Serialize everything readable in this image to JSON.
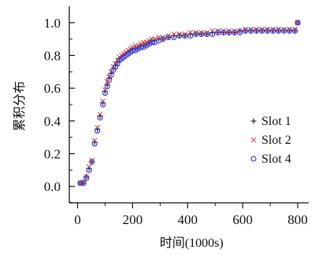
{
  "chart_data": {
    "type": "scatter",
    "xlabel": "时间(1000s)",
    "ylabel": "累积分布",
    "xlim": [
      -30,
      840
    ],
    "ylim": [
      -0.1,
      1.1
    ],
    "xticks": [
      0,
      200,
      400,
      600,
      800
    ],
    "yticks": [
      0.0,
      0.2,
      0.4,
      0.6,
      0.8,
      1.0
    ],
    "xtick_labels": [
      "0",
      "200",
      "400",
      "600",
      "800"
    ],
    "ytick_labels": [
      "0.0",
      "0.2",
      "0.4",
      "0.6",
      "0.8",
      "1.0"
    ],
    "legend_position": "right",
    "grid": false,
    "series": [
      {
        "name": "Slot 1",
        "marker": "plus",
        "color": "#222222",
        "points": [
          [
            10,
            0.02
          ],
          [
            22,
            0.02
          ],
          [
            32,
            0.06
          ],
          [
            42,
            0.11
          ],
          [
            52,
            0.15
          ],
          [
            62,
            0.27
          ],
          [
            72,
            0.35
          ],
          [
            82,
            0.43
          ],
          [
            92,
            0.51
          ],
          [
            100,
            0.58
          ],
          [
            108,
            0.62
          ],
          [
            115,
            0.66
          ],
          [
            122,
            0.69
          ],
          [
            130,
            0.72
          ],
          [
            138,
            0.74
          ],
          [
            145,
            0.76
          ],
          [
            152,
            0.78
          ],
          [
            160,
            0.79
          ],
          [
            168,
            0.8
          ],
          [
            176,
            0.81
          ],
          [
            184,
            0.82
          ],
          [
            192,
            0.83
          ],
          [
            200,
            0.84
          ],
          [
            210,
            0.84
          ],
          [
            220,
            0.85
          ],
          [
            230,
            0.86
          ],
          [
            240,
            0.86
          ],
          [
            250,
            0.87
          ],
          [
            260,
            0.88
          ],
          [
            270,
            0.89
          ],
          [
            280,
            0.89
          ],
          [
            295,
            0.9
          ],
          [
            310,
            0.9
          ],
          [
            330,
            0.91
          ],
          [
            350,
            0.92
          ],
          [
            370,
            0.92
          ],
          [
            390,
            0.92
          ],
          [
            410,
            0.93
          ],
          [
            430,
            0.93
          ],
          [
            450,
            0.93
          ],
          [
            470,
            0.93
          ],
          [
            490,
            0.94
          ],
          [
            510,
            0.94
          ],
          [
            530,
            0.94
          ],
          [
            550,
            0.94
          ],
          [
            570,
            0.94
          ],
          [
            590,
            0.95
          ],
          [
            610,
            0.95
          ],
          [
            630,
            0.95
          ],
          [
            650,
            0.95
          ],
          [
            670,
            0.95
          ],
          [
            690,
            0.95
          ],
          [
            710,
            0.95
          ],
          [
            730,
            0.95
          ],
          [
            750,
            0.95
          ],
          [
            770,
            0.95
          ],
          [
            790,
            0.95
          ],
          [
            800,
            1.0
          ]
        ]
      },
      {
        "name": "Slot 2",
        "marker": "x",
        "color": "#e0554f",
        "points": [
          [
            10,
            0.02
          ],
          [
            22,
            0.03
          ],
          [
            32,
            0.06
          ],
          [
            42,
            0.12
          ],
          [
            52,
            0.16
          ],
          [
            62,
            0.28
          ],
          [
            72,
            0.36
          ],
          [
            82,
            0.44
          ],
          [
            92,
            0.52
          ],
          [
            100,
            0.59
          ],
          [
            108,
            0.64
          ],
          [
            115,
            0.67
          ],
          [
            122,
            0.7
          ],
          [
            130,
            0.73
          ],
          [
            138,
            0.75
          ],
          [
            145,
            0.77
          ],
          [
            152,
            0.79
          ],
          [
            160,
            0.8
          ],
          [
            168,
            0.81
          ],
          [
            176,
            0.82
          ],
          [
            184,
            0.83
          ],
          [
            192,
            0.84
          ],
          [
            200,
            0.85
          ],
          [
            210,
            0.86
          ],
          [
            220,
            0.86
          ],
          [
            230,
            0.87
          ],
          [
            240,
            0.88
          ],
          [
            250,
            0.88
          ],
          [
            260,
            0.89
          ],
          [
            270,
            0.9
          ],
          [
            280,
            0.9
          ],
          [
            295,
            0.91
          ],
          [
            310,
            0.91
          ],
          [
            330,
            0.92
          ],
          [
            350,
            0.93
          ],
          [
            370,
            0.93
          ],
          [
            390,
            0.93
          ],
          [
            410,
            0.94
          ],
          [
            430,
            0.94
          ],
          [
            450,
            0.94
          ],
          [
            470,
            0.94
          ],
          [
            490,
            0.95
          ],
          [
            510,
            0.95
          ],
          [
            530,
            0.95
          ],
          [
            550,
            0.95
          ],
          [
            570,
            0.95
          ],
          [
            590,
            0.95
          ],
          [
            610,
            0.96
          ],
          [
            630,
            0.96
          ],
          [
            650,
            0.96
          ],
          [
            670,
            0.96
          ],
          [
            690,
            0.96
          ],
          [
            710,
            0.96
          ],
          [
            730,
            0.96
          ],
          [
            750,
            0.96
          ],
          [
            770,
            0.96
          ],
          [
            790,
            0.96
          ],
          [
            800,
            1.0
          ]
        ]
      },
      {
        "name": "Slot 4",
        "marker": "circle",
        "color": "#3b3bd8",
        "points": [
          [
            10,
            0.02
          ],
          [
            22,
            0.02
          ],
          [
            32,
            0.05
          ],
          [
            42,
            0.1
          ],
          [
            52,
            0.15
          ],
          [
            62,
            0.26
          ],
          [
            72,
            0.34
          ],
          [
            82,
            0.42
          ],
          [
            92,
            0.5
          ],
          [
            100,
            0.57
          ],
          [
            108,
            0.61
          ],
          [
            115,
            0.65
          ],
          [
            122,
            0.68
          ],
          [
            130,
            0.71
          ],
          [
            138,
            0.73
          ],
          [
            145,
            0.75
          ],
          [
            152,
            0.77
          ],
          [
            160,
            0.78
          ],
          [
            168,
            0.79
          ],
          [
            176,
            0.8
          ],
          [
            184,
            0.81
          ],
          [
            192,
            0.82
          ],
          [
            200,
            0.83
          ],
          [
            210,
            0.83
          ],
          [
            220,
            0.84
          ],
          [
            230,
            0.85
          ],
          [
            240,
            0.85
          ],
          [
            250,
            0.86
          ],
          [
            260,
            0.87
          ],
          [
            270,
            0.88
          ],
          [
            280,
            0.88
          ],
          [
            295,
            0.89
          ],
          [
            310,
            0.9
          ],
          [
            330,
            0.91
          ],
          [
            350,
            0.91
          ],
          [
            370,
            0.92
          ],
          [
            390,
            0.92
          ],
          [
            410,
            0.92
          ],
          [
            430,
            0.93
          ],
          [
            450,
            0.93
          ],
          [
            470,
            0.93
          ],
          [
            490,
            0.93
          ],
          [
            510,
            0.94
          ],
          [
            530,
            0.94
          ],
          [
            550,
            0.94
          ],
          [
            570,
            0.94
          ],
          [
            590,
            0.94
          ],
          [
            610,
            0.95
          ],
          [
            630,
            0.95
          ],
          [
            650,
            0.95
          ],
          [
            670,
            0.95
          ],
          [
            690,
            0.95
          ],
          [
            710,
            0.95
          ],
          [
            730,
            0.95
          ],
          [
            750,
            0.95
          ],
          [
            770,
            0.95
          ],
          [
            790,
            0.95
          ],
          [
            800,
            1.0
          ]
        ]
      }
    ]
  }
}
